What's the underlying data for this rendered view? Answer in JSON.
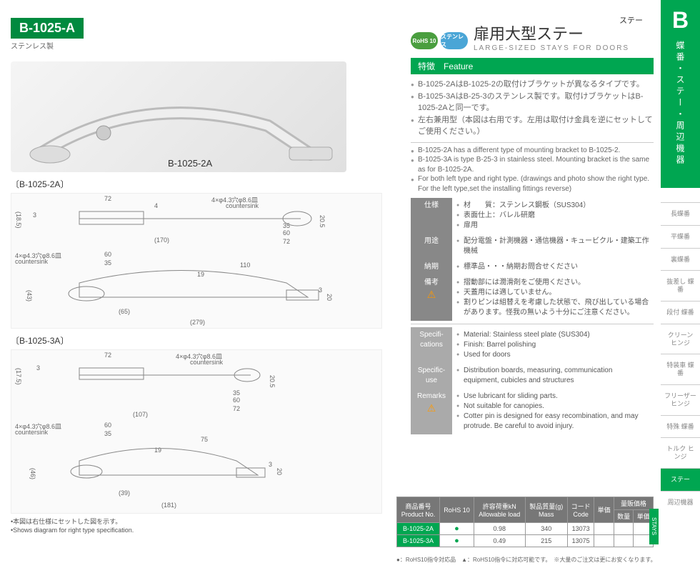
{
  "header": {
    "category": "ステー"
  },
  "product": {
    "code": "B-1025-A",
    "material_label": "ステンレス製",
    "photo_label": "B-1025-2A"
  },
  "drawings": {
    "d1_label": "〔B-1025-2A〕",
    "d2_label": "〔B-1025-3A〕",
    "countersink_jp": "4×φ4.3穴φ8.6皿",
    "countersink_en": "countersink",
    "d1": {
      "a": "72",
      "b": "4",
      "c": "(18.5)",
      "d": "3",
      "e": "(170)",
      "f": "35",
      "g": "60",
      "h": "72",
      "i": "20.5",
      "j": "60",
      "k": "35",
      "l": "19",
      "m": "110",
      "n": "(43)",
      "o": "(65)",
      "p": "(279)",
      "q": "3",
      "r": "20"
    },
    "d2": {
      "a": "72",
      "b": "(17.5)",
      "c": "3",
      "d": "35",
      "e": "60",
      "f": "72",
      "g": "20.5",
      "h": "(107)",
      "i": "60",
      "j": "35",
      "k": "19",
      "l": "75",
      "m": "(46)",
      "n": "(39)",
      "o": "(181)",
      "p": "3",
      "q": "20"
    }
  },
  "note_left": {
    "jp": "•本図は右仕様にセットした図を示す。",
    "en": "•Shows diagram for right type specification."
  },
  "badges": {
    "rohs": "RoHS 10",
    "sus": "ステンレス"
  },
  "title": {
    "jp": "扉用大型ステー",
    "en": "LARGE-SIZED STAYS FOR DOORS"
  },
  "feature_header": "特徴　Feature",
  "features_jp": [
    "B-1025-2AはB-1025-2の取付けブラケットが異なるタイプです。",
    "B-1025-3AはB-25-3のステンレス製です。取付けブラケットはB-1025-2Aと同一です。",
    "左右兼用型（本図は右用です。左用は取付け金具を逆にセットしてご使用ください。）"
  ],
  "features_en": [
    "B-1025-2A has a different type of mounting bracket to B-1025-2.",
    "B-1025-3A is type B-25-3 in stainless steel. Mounting bracket is the same as for B-1025-2A.",
    "For both left type and right type. (drawings and photo show the right type. For the left type,set the installing fittings reverse)"
  ],
  "spec_jp": {
    "siyou_label": "仕様",
    "siyou": [
      "材　　質：ステンレス鋼板（SUS304）",
      "表面仕上：バレル研磨",
      "扉用"
    ],
    "youto_label": "用途",
    "youto": [
      "配分電盤・計測機器・通信機器・キュービクル・建築工作機械"
    ],
    "nouki_label": "納期",
    "nouki": [
      "標準品・・・納期お問合せください"
    ],
    "bikou_label": "備考",
    "bikou": [
      "摺動部には潤滑剤をご使用ください。",
      "天蓋用には適していません。",
      "割りピンは組替えを考慮した状態で、飛び出している場合があります。怪我の無いよう十分にご注意ください。"
    ]
  },
  "spec_en": {
    "spec_label": "Specifi-\ncations",
    "spec": [
      "Material: Stainless steel plate (SUS304)",
      "Finish: Barrel polishing",
      "Used for doors"
    ],
    "use_label": "Specific-\nuse",
    "use": [
      "Distribution boards, measuring, communication equipment, cubicles and structures"
    ],
    "rem_label": "Remarks",
    "rem": [
      "Use lubricant for sliding parts.",
      "Not suitable for canopies.",
      "Cotter pin is designed for easy recombination, and may protrude. Be careful to avoid injury."
    ]
  },
  "prod_table": {
    "headers": {
      "pn_jp": "商品番号",
      "pn_en": "Product No.",
      "rohs": "RoHS 10",
      "load_jp": "許容荷重kN",
      "load_en": "Allowable load",
      "mass_jp": "製品質量(g)",
      "mass_en": "Mass",
      "code_jp": "コード",
      "code_en": "Code",
      "unit": "単価",
      "bulk": "量販価格",
      "qty": "数量",
      "unit2": "単価"
    },
    "rows": [
      {
        "pn": "B-1025-2A",
        "load": "0.98",
        "mass": "340",
        "code": "13073"
      },
      {
        "pn": "B-1025-3A",
        "load": "0.49",
        "mass": "215",
        "code": "13075"
      }
    ],
    "note": "●：RoHS10指令対応品　▲：RoHS10指令に対応可能です。　※大量のご注文は更にお安くなります。"
  },
  "sidebar": {
    "letter": "B",
    "vertical": "蝶番・ステー・周辺機器",
    "items": [
      "長蝶番",
      "平蝶番",
      "裏蝶番",
      "抜差し\n蝶番",
      "段付\n蝶番",
      "クリーン\nヒンジ",
      "特装車\n蝶番",
      "フリーザー\nヒンジ",
      "特殊\n蝶番",
      "トルク\nヒンジ"
    ],
    "active": "ステー",
    "stays": "STAYS",
    "bottom": "周辺機器"
  }
}
